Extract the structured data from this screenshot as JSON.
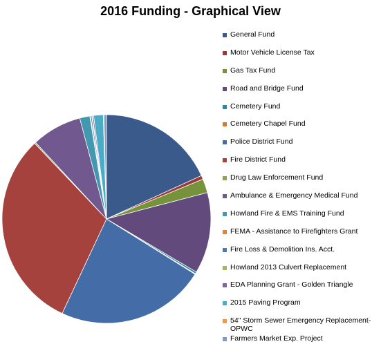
{
  "chart_data": {
    "type": "pie",
    "title": "2016 Funding - Graphical View",
    "legend_position": "right",
    "series": [
      {
        "name": "General Fund",
        "value": 18.5,
        "color": "#3B5A8C"
      },
      {
        "name": "Motor Vehicle License Tax",
        "value": 0.6,
        "color": "#9B3A38"
      },
      {
        "name": "Gas Tax Fund",
        "value": 2.2,
        "color": "#76933C"
      },
      {
        "name": "Road and Bridge Fund",
        "value": 12.8,
        "color": "#634A7D"
      },
      {
        "name": "Cemetery Fund",
        "value": 0.3,
        "color": "#2E86A0"
      },
      {
        "name": "Cemetery Chapel Fund",
        "value": 0.1,
        "color": "#D07A2C"
      },
      {
        "name": "Police District Fund",
        "value": 23.5,
        "color": "#446CA7"
      },
      {
        "name": "Fire District Fund",
        "value": 31.5,
        "color": "#A6423D"
      },
      {
        "name": "Drug Law Enforcement Fund",
        "value": 0.2,
        "color": "#89A54E"
      },
      {
        "name": " Ambulance & Emergency Medical Fund",
        "value": 7.9,
        "color": "#71588F"
      },
      {
        "name": "Howland Fire & EMS Training Fund",
        "value": 1.6,
        "color": "#4198AF"
      },
      {
        "name": "FEMA - Assistance to Firefighters Grant",
        "value": 0.1,
        "color": "#DB843D"
      },
      {
        "name": "Fire Loss & Demolition Ins. Acct.",
        "value": 0.2,
        "color": "#4F77B1"
      },
      {
        "name": "Howland 2013 Culvert Replacement",
        "value": 0.1,
        "color": "#9BBB59"
      },
      {
        "name": "EDA Planning Grant - Golden Triangle",
        "value": 0.2,
        "color": "#8064A2"
      },
      {
        "name": "2015 Paving Program",
        "value": 1.5,
        "color": "#4BACC6"
      },
      {
        "name": "54\" Storm Sewer Emergency Replacement-OPWC",
        "value": 0.1,
        "color": "#F79646"
      },
      {
        "name": "Farmers Market Exp. Project",
        "value": 0.4,
        "color": "#7F9CC4"
      }
    ]
  }
}
